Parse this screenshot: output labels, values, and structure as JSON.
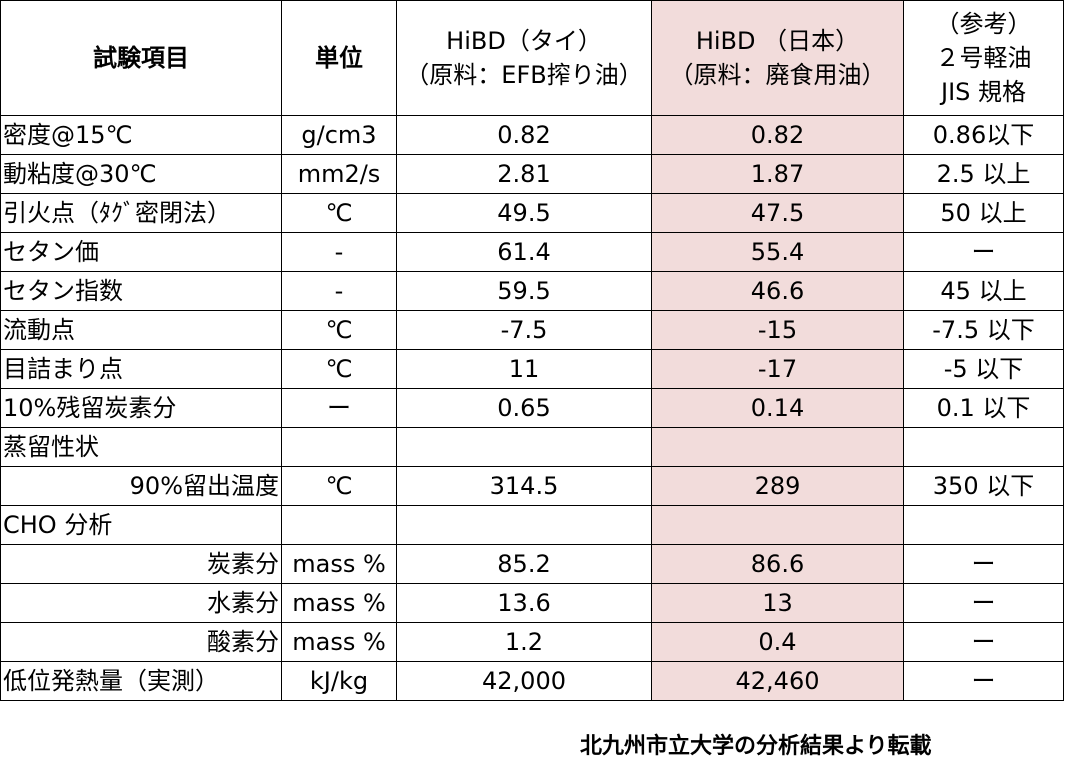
{
  "header": {
    "item": "試験項目",
    "unit": "単位",
    "thai_line1": "HiBD（タイ）",
    "thai_line2": "（原料：EFB搾り油）",
    "japan_line1": "HiBD （日本）",
    "japan_line2": "（原料：廃食用油）",
    "ref_line1": "（参考）",
    "ref_line2": "２号軽油",
    "ref_line3": "JIS 規格"
  },
  "rows": [
    {
      "item": "密度@15℃",
      "unit": "g/cm3",
      "thai": "0.82",
      "japan": "0.82",
      "ref": "0.86以下"
    },
    {
      "item": "動粘度@30℃",
      "unit": "mm2/s",
      "thai": "2.81",
      "japan": "1.87",
      "ref": "2.5 以上"
    },
    {
      "item": "引火点（ﾀｸﾞ密閉法）",
      "unit": "℃",
      "thai": "49.5",
      "japan": "47.5",
      "ref": "50 以上"
    },
    {
      "item": "セタン価",
      "unit": "-",
      "thai": "61.4",
      "japan": "55.4",
      "ref": "ー"
    },
    {
      "item": "セタン指数",
      "unit": "-",
      "thai": "59.5",
      "japan": "46.6",
      "ref": "45 以上"
    },
    {
      "item": "流動点",
      "unit": "℃",
      "thai": "-7.5",
      "japan": "-15",
      "ref": "-7.5 以下"
    },
    {
      "item": "目詰まり点",
      "unit": "℃",
      "thai": "11",
      "japan": "-17",
      "ref": "-5 以下"
    },
    {
      "item": "10%残留炭素分",
      "unit": "ー",
      "thai": "0.65",
      "japan": "0.14",
      "ref": "0.1 以下"
    },
    {
      "item": "蒸留性状",
      "unit": "",
      "thai": "",
      "japan": "",
      "ref": ""
    },
    {
      "item": "90%留出温度",
      "unit": "℃",
      "thai": "314.5",
      "japan": "289",
      "ref": "350 以下"
    },
    {
      "item": "CHO 分析",
      "unit": "",
      "thai": "",
      "japan": "",
      "ref": ""
    },
    {
      "item": "炭素分",
      "unit": "mass %",
      "thai": "85.2",
      "japan": "86.6",
      "ref": "ー"
    },
    {
      "item": "水素分",
      "unit": "mass %",
      "thai": "13.6",
      "japan": "13",
      "ref": "ー"
    },
    {
      "item": "酸素分",
      "unit": "mass %",
      "thai": "1.2",
      "japan": "0.4",
      "ref": "ー"
    },
    {
      "item": "低位発熱量（実測）",
      "unit": "kJ/kg",
      "thai": "42,000",
      "japan": "42,460",
      "ref": "ー"
    }
  ],
  "note": "北九州市立大学の分析結果より転載",
  "colors": {
    "japan_column_bg": "#f2dcdb",
    "border": "#000000"
  }
}
